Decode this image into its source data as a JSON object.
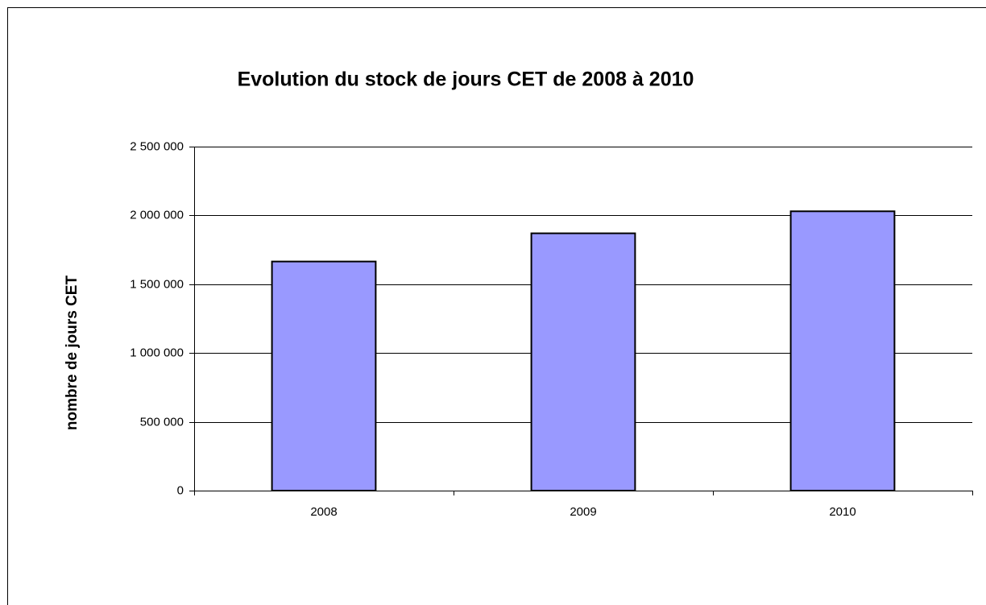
{
  "chart_data": {
    "type": "bar",
    "title": "Evolution du stock de jours CET de 2008 à 2010",
    "y_label": "nombre de jours CET",
    "categories": [
      "2008",
      "2009",
      "2010"
    ],
    "values": [
      1665000,
      1870000,
      2030000
    ],
    "color": "#9999ff",
    "ylim": [
      0,
      2500000
    ],
    "yticks": [
      0,
      {
        "value": 500000,
        "label": "500 000"
      },
      {
        "value": 1000000,
        "label": "1 000 000"
      },
      {
        "value": 1500000,
        "label": "1 500 000"
      },
      {
        "value": 2000000,
        "label": "2 000 000"
      },
      {
        "value": 2500000,
        "label": "2 500 000"
      }
    ],
    "grid": true
  }
}
